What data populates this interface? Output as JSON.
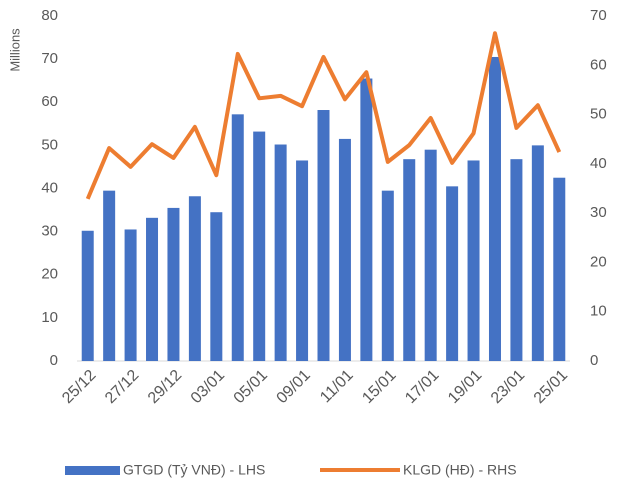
{
  "chart_data": {
    "type": "bar",
    "y_axis_unit": "Millions",
    "categories": [
      "25/12",
      null,
      "27/12",
      null,
      "29/12",
      null,
      "03/01",
      null,
      "05/01",
      null,
      "09/01",
      null,
      "11/01",
      null,
      "15/01",
      null,
      "17/01",
      null,
      "19/01",
      null,
      "23/01",
      null,
      "25/01"
    ],
    "series": [
      {
        "name": "GTGD (Tỷ VNĐ) - LHS",
        "type": "bar",
        "color": "#4472c4",
        "values": [
          30.2,
          39.5,
          30.5,
          33.2,
          35.5,
          38.2,
          34.5,
          57.2,
          53.2,
          50.2,
          46.5,
          58.2,
          51.5,
          65.5,
          39.5,
          46.8,
          49.0,
          40.5,
          46.5,
          70.5,
          46.8,
          50.0,
          42.5
        ]
      },
      {
        "name": "KLGD (HĐ) - RHS",
        "type": "line",
        "axis": "y2",
        "color": "#ed7d31",
        "values": [
          32.9,
          43.2,
          39.4,
          44.0,
          41.2,
          47.5,
          37.7,
          62.3,
          53.3,
          53.8,
          51.7,
          61.7,
          53.1,
          58.6,
          40.4,
          43.8,
          49.3,
          40.2,
          46.2,
          66.5,
          47.3,
          51.9,
          42.4
        ]
      }
    ],
    "ylim": [
      0,
      80
    ],
    "yticks": [
      0,
      10,
      20,
      30,
      40,
      50,
      60,
      70,
      80
    ],
    "y2lim": [
      0,
      70
    ],
    "y2ticks": [
      0,
      10,
      20,
      30,
      40,
      50,
      60,
      70
    ],
    "legend": "bottom"
  }
}
